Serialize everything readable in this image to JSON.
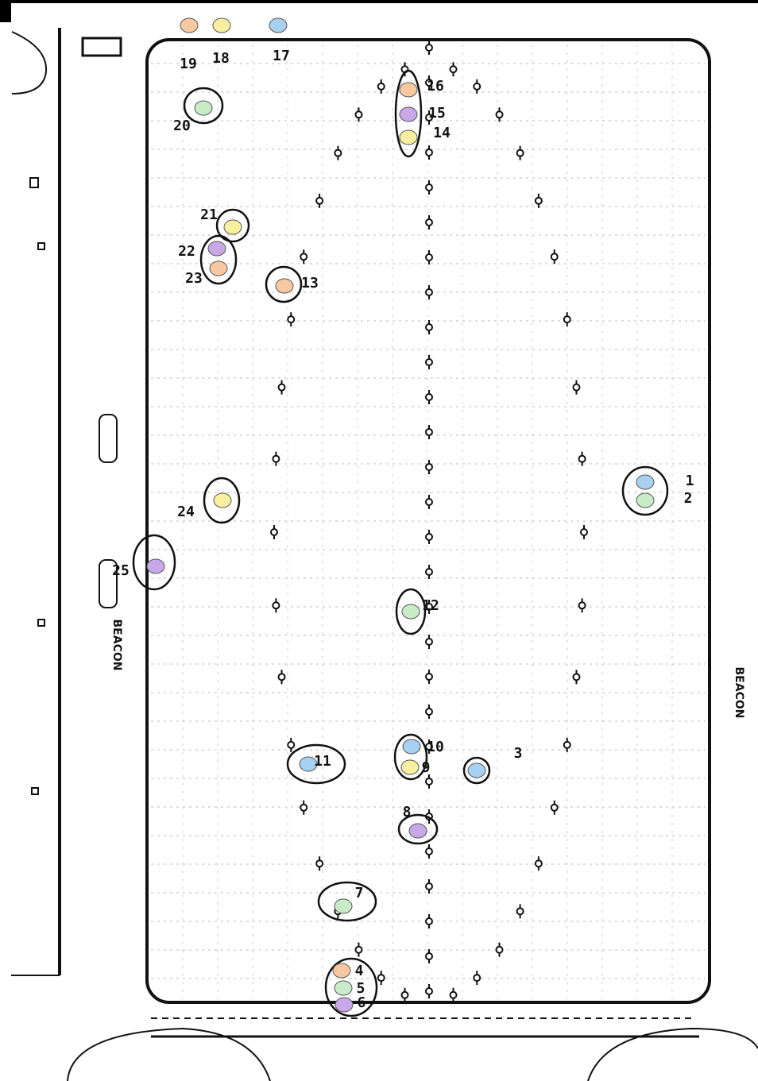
{
  "nodes": [
    {
      "label": "1",
      "color": "#a8d0f0"
    },
    {
      "label": "2",
      "color": "#c8ecc8"
    },
    {
      "label": "3",
      "color": "#a8d0f0"
    },
    {
      "label": "4",
      "color": "#f8c8a0"
    },
    {
      "label": "5",
      "color": "#c8ecc8"
    },
    {
      "label": "6",
      "color": "#c8a8e8"
    },
    {
      "label": "7",
      "color": "#c8ecc8"
    },
    {
      "label": "8",
      "color": "#c8a8e8"
    },
    {
      "label": "9",
      "color": "#f8f0a0"
    },
    {
      "label": "10",
      "color": "#a8d0f0"
    },
    {
      "label": "11",
      "color": "#a8d0f0"
    },
    {
      "label": "12",
      "color": "#c8ecc8"
    },
    {
      "label": "13",
      "color": "#f8c8a0"
    },
    {
      "label": "14",
      "color": "#f8f0a0"
    },
    {
      "label": "15",
      "color": "#c8a8e8"
    },
    {
      "label": "16",
      "color": "#f8c8a0"
    },
    {
      "label": "17",
      "color": "#a8d0f0"
    },
    {
      "label": "18",
      "color": "#f8f0a0"
    },
    {
      "label": "19",
      "color": "#f8c8a0"
    },
    {
      "label": "20",
      "color": "#c8ecc8"
    },
    {
      "label": "21",
      "color": "#f8f0a0"
    },
    {
      "label": "22",
      "color": "#c8a8e8"
    },
    {
      "label": "23",
      "color": "#f8c8a0"
    },
    {
      "label": "24",
      "color": "#f8f0a0"
    },
    {
      "label": "25",
      "color": "#c8a8e8"
    }
  ],
  "beacon_left": "BEACON",
  "beacon_right": "BEACON"
}
